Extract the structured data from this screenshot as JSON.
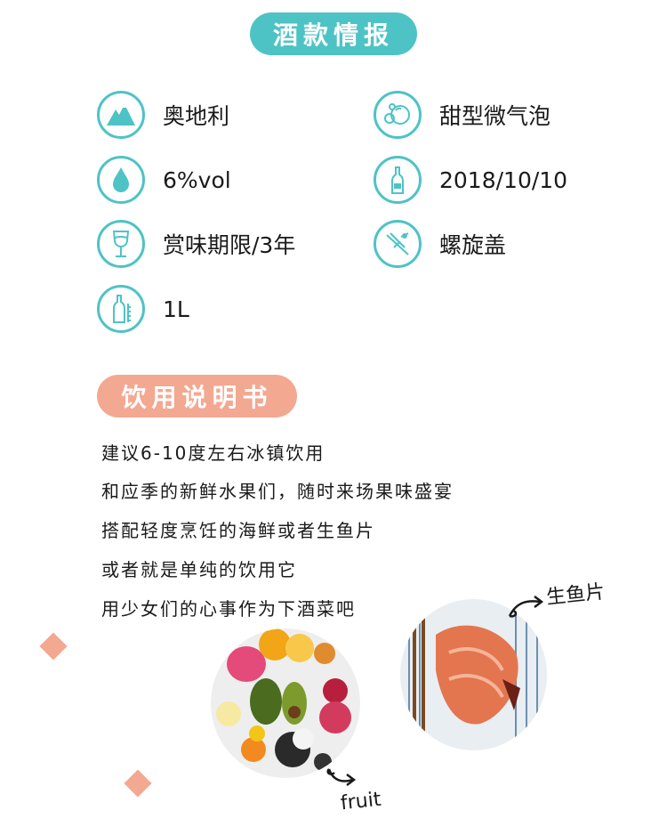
{
  "info_title": "酒款情报",
  "specs": [
    {
      "label": "奥地利",
      "icon": "mountain-icon"
    },
    {
      "label": "甜型微气泡",
      "icon": "bubbles-icon"
    },
    {
      "label": "6%vol",
      "icon": "drop-icon"
    },
    {
      "label": "2018/10/10",
      "icon": "bottle-icon"
    },
    {
      "label": "赏味期限/3年",
      "icon": "wine-glass-icon"
    },
    {
      "label": "螺旋盖",
      "icon": "corkscrew-icon"
    },
    {
      "label": "1L",
      "icon": "bottle-measure-icon"
    }
  ],
  "guide_title": "饮用说明书",
  "guide_lines": [
    "建议6-10度左右冰镇饮用",
    "和应季的新鲜水果们，随时来场果味盛宴",
    "搭配轻度烹饪的海鲜或者生鱼片",
    "或者就是单纯的饮用它",
    "用少女们的心事作为下酒菜吧"
  ],
  "captions": {
    "sashimi": "生鱼片",
    "fruit": "fruit"
  },
  "colors": {
    "teal": "#4ec3c5",
    "salmon": "#f3a892"
  }
}
